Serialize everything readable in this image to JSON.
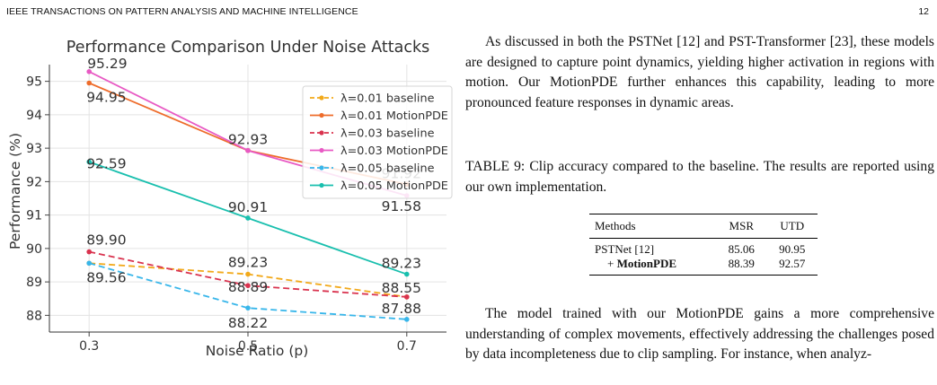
{
  "header": {
    "journal": "IEEE TRANSACTIONS ON PATTERN ANALYSIS AND MACHINE INTELLIGENCE",
    "page_number": "12"
  },
  "paragraph1": "As discussed in both the PSTNet [12] and PST-Transformer [23], these models are designed to capture point dynamics, yielding higher activation in regions with motion. Our MotionPDE further enhances this capability, leading to more pronounced feature responses in dynamic areas.",
  "table_caption": "TABLE 9: Clip accuracy compared to the baseline. The results are reported using our own implementation.",
  "table": {
    "headers": [
      "Methods",
      "MSR",
      "UTD"
    ],
    "rows": [
      {
        "method": "PSTNet [12]",
        "msr": "85.06",
        "utd": "90.95"
      },
      {
        "method_prefix": "+ ",
        "method_bold": "MotionPDE",
        "msr": "88.39",
        "utd": "92.57"
      }
    ]
  },
  "paragraph2": "The model trained with our MotionPDE gains a more comprehensive understanding of complex movements, effectively addressing the challenges posed by data incompleteness due to clip sampling. For instance, when analyz-",
  "chart_data": {
    "type": "line",
    "title": "Performance Comparison Under Noise Attacks",
    "xlabel": "Noise Ratio (p)",
    "ylabel": "Performance (%)",
    "x": [
      0.3,
      0.5,
      0.7
    ],
    "x_tick_labels": [
      "0.3",
      "0.5",
      "0.7"
    ],
    "ylim": [
      87.5,
      95.5
    ],
    "y_ticks": [
      88,
      89,
      90,
      91,
      92,
      93,
      94,
      95
    ],
    "grid": true,
    "legend_position": "top-right",
    "series": [
      {
        "name": "λ=0.01 baseline",
        "values": [
          89.56,
          89.23,
          88.55
        ],
        "color": "#f2a91a",
        "dashed": true
      },
      {
        "name": "λ=0.01 MotionPDE",
        "values": [
          94.95,
          92.93,
          91.92
        ],
        "color": "#ee6c2b",
        "dashed": false
      },
      {
        "name": "λ=0.03 baseline",
        "values": [
          89.9,
          88.89,
          88.55
        ],
        "color": "#d9334f",
        "dashed": true
      },
      {
        "name": "λ=0.03 MotionPDE",
        "values": [
          95.29,
          92.93,
          91.58
        ],
        "color": "#e85ac4",
        "dashed": false
      },
      {
        "name": "λ=0.05 baseline",
        "values": [
          89.56,
          88.22,
          87.88
        ],
        "color": "#38b6ea",
        "dashed": true
      },
      {
        "name": "λ=0.05 MotionPDE",
        "values": [
          92.59,
          90.91,
          89.23
        ],
        "color": "#19bfae",
        "dashed": false
      }
    ],
    "annotations": [
      "95.29",
      "94.95",
      "92.59",
      "92.93",
      "90.91",
      "91.92",
      "91.58",
      "89.90",
      "89.56",
      "89.23",
      "88.89",
      "88.22",
      "89.23",
      "88.55",
      "87.88"
    ]
  }
}
